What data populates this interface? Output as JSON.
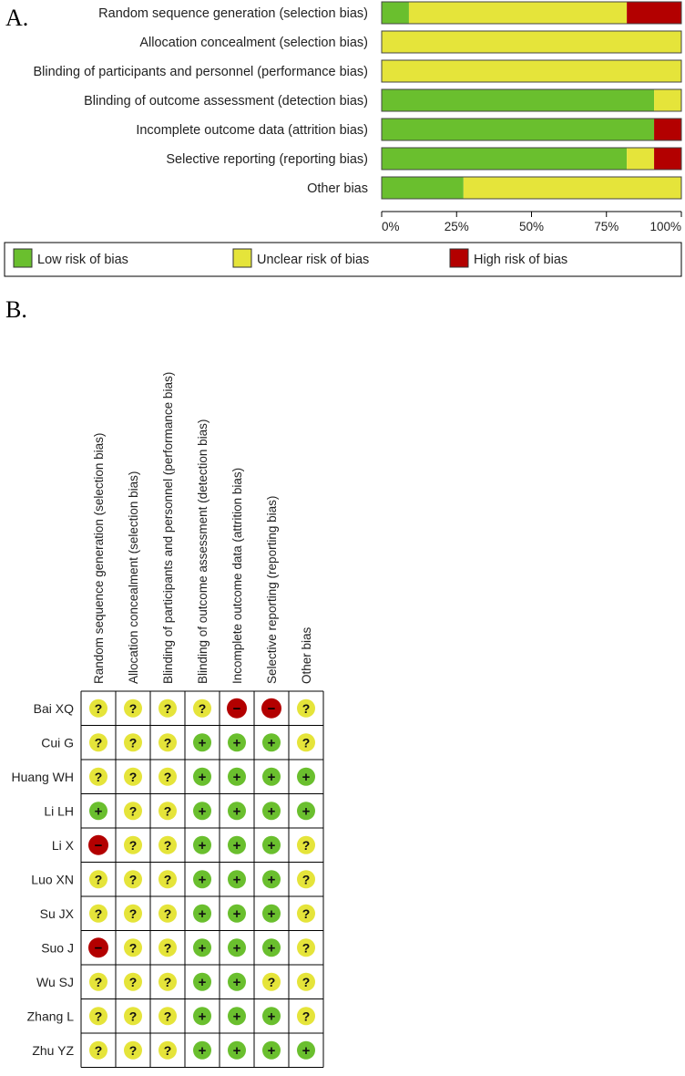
{
  "panel_a": {
    "label": "A."
  },
  "panel_b": {
    "label": "B."
  },
  "colors": {
    "low": "#6abf2e",
    "unclear": "#e5e43a",
    "high": "#b30000"
  },
  "chart_data": [
    {
      "type": "bar",
      "orientation": "horizontal",
      "stacked": true,
      "categories": [
        "Random sequence generation (selection bias)",
        "Allocation concealment (selection bias)",
        "Blinding of participants and personnel (performance bias)",
        "Blinding of outcome assessment (detection bias)",
        "Incomplete outcome data (attrition bias)",
        "Selective reporting (reporting bias)",
        "Other bias"
      ],
      "series": [
        {
          "name": "Low risk of bias",
          "key": "low",
          "values": [
            9.1,
            0,
            0,
            90.9,
            90.9,
            81.8,
            27.3
          ]
        },
        {
          "name": "Unclear risk of bias",
          "key": "unclear",
          "values": [
            72.7,
            100,
            100,
            9.1,
            0,
            9.1,
            72.7
          ]
        },
        {
          "name": "High risk of bias",
          "key": "high",
          "values": [
            18.2,
            0,
            0,
            0,
            9.1,
            9.1,
            0
          ]
        }
      ],
      "xlim": [
        0,
        100
      ],
      "xticks": [
        "0%",
        "25%",
        "50%",
        "75%",
        "100%"
      ],
      "legend_position": "bottom"
    },
    {
      "type": "table",
      "columns": [
        "Random sequence generation (selection bias)",
        "Allocation concealment (selection bias)",
        "Blinding of participants and personnel (performance bias)",
        "Blinding of outcome assessment (detection bias)",
        "Incomplete outcome data (attrition bias)",
        "Selective reporting (reporting bias)",
        "Other bias"
      ],
      "rows": [
        {
          "study": "Bai XQ",
          "judgements": [
            "?",
            "?",
            "?",
            "?",
            "-",
            "-",
            "?"
          ]
        },
        {
          "study": "Cui G",
          "judgements": [
            "?",
            "?",
            "?",
            "+",
            "+",
            "+",
            "?"
          ]
        },
        {
          "study": "Huang WH",
          "judgements": [
            "?",
            "?",
            "?",
            "+",
            "+",
            "+",
            "+"
          ]
        },
        {
          "study": "Li LH",
          "judgements": [
            "+",
            "?",
            "?",
            "+",
            "+",
            "+",
            "+"
          ]
        },
        {
          "study": "Li X",
          "judgements": [
            "-",
            "?",
            "?",
            "+",
            "+",
            "+",
            "?"
          ]
        },
        {
          "study": "Luo XN",
          "judgements": [
            "?",
            "?",
            "?",
            "+",
            "+",
            "+",
            "?"
          ]
        },
        {
          "study": "Su JX",
          "judgements": [
            "?",
            "?",
            "?",
            "+",
            "+",
            "+",
            "?"
          ]
        },
        {
          "study": "Suo J",
          "judgements": [
            "-",
            "?",
            "?",
            "+",
            "+",
            "+",
            "?"
          ]
        },
        {
          "study": "Wu SJ",
          "judgements": [
            "?",
            "?",
            "?",
            "+",
            "+",
            "?",
            "?"
          ]
        },
        {
          "study": "Zhang L",
          "judgements": [
            "?",
            "?",
            "?",
            "+",
            "+",
            "+",
            "?"
          ]
        },
        {
          "study": "Zhu YZ",
          "judgements": [
            "?",
            "?",
            "?",
            "+",
            "+",
            "+",
            "+"
          ]
        }
      ]
    }
  ]
}
